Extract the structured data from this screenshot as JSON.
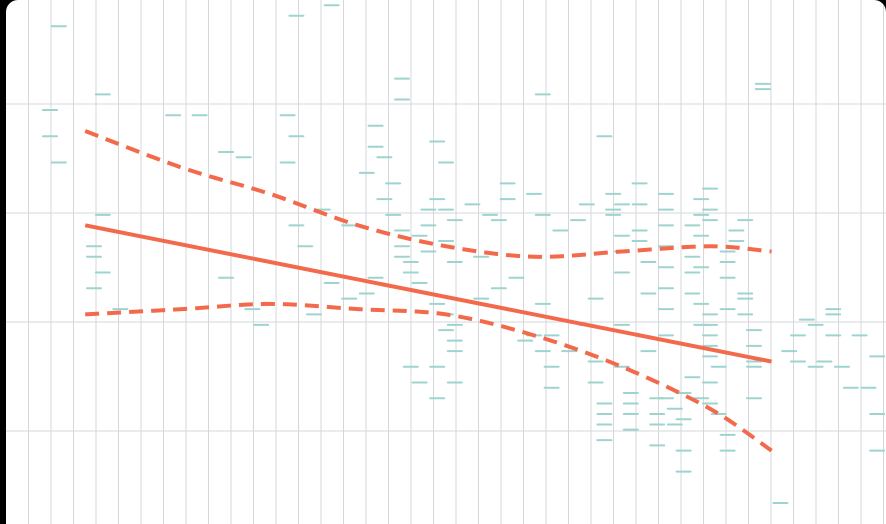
{
  "chart_data": {
    "type": "scatter",
    "title": "",
    "xlabel": "",
    "ylabel": "",
    "xlim": [
      0,
      100
    ],
    "ylim": [
      0,
      100
    ],
    "grid": true,
    "legend": "none",
    "colors": {
      "background": "#ffffff",
      "grid": "#d5d7da",
      "points": "#9ed4cf",
      "fit": "#f26a4b",
      "band": "#f26a4b"
    },
    "points": [
      [
        6,
        95
      ],
      [
        5,
        79
      ],
      [
        5,
        74
      ],
      [
        6,
        69
      ],
      [
        11,
        82
      ],
      [
        11,
        59
      ],
      [
        11,
        48
      ],
      [
        10,
        53
      ],
      [
        10,
        51
      ],
      [
        10,
        45
      ],
      [
        13,
        41
      ],
      [
        19,
        78
      ],
      [
        22,
        78
      ],
      [
        25,
        71
      ],
      [
        27,
        70
      ],
      [
        25,
        47
      ],
      [
        28,
        41
      ],
      [
        29,
        38
      ],
      [
        33,
        97
      ],
      [
        32,
        78
      ],
      [
        33,
        74
      ],
      [
        32,
        69
      ],
      [
        33,
        57
      ],
      [
        34,
        53
      ],
      [
        37,
        46
      ],
      [
        39,
        43
      ],
      [
        35,
        40
      ],
      [
        37,
        99
      ],
      [
        36,
        60
      ],
      [
        39,
        57
      ],
      [
        41,
        67
      ],
      [
        42,
        76
      ],
      [
        42,
        72
      ],
      [
        43,
        70
      ],
      [
        44,
        65
      ],
      [
        41,
        44
      ],
      [
        42,
        47
      ],
      [
        43,
        62
      ],
      [
        44,
        59
      ],
      [
        45,
        56
      ],
      [
        45,
        53
      ],
      [
        45,
        51
      ],
      [
        46,
        50
      ],
      [
        46,
        48
      ],
      [
        47,
        46
      ],
      [
        45,
        85
      ],
      [
        45,
        81
      ],
      [
        47,
        55
      ],
      [
        48,
        60
      ],
      [
        48,
        57
      ],
      [
        48,
        52
      ],
      [
        49,
        62
      ],
      [
        49,
        73
      ],
      [
        50,
        69
      ],
      [
        50,
        60
      ],
      [
        50,
        54
      ],
      [
        51,
        58
      ],
      [
        51,
        50
      ],
      [
        49,
        42
      ],
      [
        50,
        40
      ],
      [
        50,
        37
      ],
      [
        51,
        35
      ],
      [
        51,
        33
      ],
      [
        46,
        30
      ],
      [
        47,
        27
      ],
      [
        49,
        24
      ],
      [
        49,
        30
      ],
      [
        51,
        38
      ],
      [
        51,
        27
      ],
      [
        53,
        61
      ],
      [
        54,
        51
      ],
      [
        54,
        43
      ],
      [
        55,
        59
      ],
      [
        56,
        58
      ],
      [
        56,
        45
      ],
      [
        57,
        65
      ],
      [
        57,
        62
      ],
      [
        58,
        47
      ],
      [
        59,
        35
      ],
      [
        60,
        36
      ],
      [
        60,
        63
      ],
      [
        61,
        59
      ],
      [
        61,
        42
      ],
      [
        61,
        33
      ],
      [
        62,
        36
      ],
      [
        62,
        30
      ],
      [
        61,
        82
      ],
      [
        62,
        26
      ],
      [
        63,
        56
      ],
      [
        64,
        33
      ],
      [
        65,
        58
      ],
      [
        66,
        61
      ],
      [
        66,
        38
      ],
      [
        67,
        43
      ],
      [
        67,
        31
      ],
      [
        67,
        27
      ],
      [
        68,
        23
      ],
      [
        68,
        21
      ],
      [
        68,
        19
      ],
      [
        68,
        16
      ],
      [
        68,
        74
      ],
      [
        69,
        63
      ],
      [
        69,
        59
      ],
      [
        69,
        60
      ],
      [
        70,
        55
      ],
      [
        70,
        52
      ],
      [
        70,
        61
      ],
      [
        70,
        48
      ],
      [
        70,
        38
      ],
      [
        70,
        30
      ],
      [
        71,
        25
      ],
      [
        71,
        23
      ],
      [
        71,
        21
      ],
      [
        71,
        18
      ],
      [
        72,
        56
      ],
      [
        72,
        65
      ],
      [
        72,
        61
      ],
      [
        72,
        54
      ],
      [
        73,
        50
      ],
      [
        73,
        44
      ],
      [
        73,
        33
      ],
      [
        74,
        24
      ],
      [
        74,
        21
      ],
      [
        74,
        19
      ],
      [
        74,
        15
      ],
      [
        75,
        63
      ],
      [
        75,
        60
      ],
      [
        75,
        57
      ],
      [
        75,
        53
      ],
      [
        75,
        49
      ],
      [
        75,
        45
      ],
      [
        75,
        41
      ],
      [
        75,
        36
      ],
      [
        75,
        24
      ],
      [
        76,
        22
      ],
      [
        76,
        19
      ],
      [
        77,
        14
      ],
      [
        77,
        10
      ],
      [
        77,
        20
      ],
      [
        77,
        25
      ],
      [
        78,
        57
      ],
      [
        78,
        51
      ],
      [
        78,
        48
      ],
      [
        78,
        44
      ],
      [
        78,
        28
      ],
      [
        79,
        38
      ],
      [
        79,
        62
      ],
      [
        79,
        59
      ],
      [
        79,
        55
      ],
      [
        79,
        49
      ],
      [
        79,
        42
      ],
      [
        79,
        24
      ],
      [
        80,
        64
      ],
      [
        80,
        60
      ],
      [
        80,
        58
      ],
      [
        80,
        40
      ],
      [
        80,
        38
      ],
      [
        80,
        36
      ],
      [
        80,
        34
      ],
      [
        80,
        32
      ],
      [
        80,
        27
      ],
      [
        80,
        23
      ],
      [
        81,
        30
      ],
      [
        81,
        21
      ],
      [
        82,
        52
      ],
      [
        82,
        50
      ],
      [
        82,
        47
      ],
      [
        82,
        41
      ],
      [
        82,
        14
      ],
      [
        82,
        17
      ],
      [
        83,
        56
      ],
      [
        83,
        54
      ],
      [
        84,
        43
      ],
      [
        84,
        58
      ],
      [
        84,
        44
      ],
      [
        84,
        40
      ],
      [
        85,
        37
      ],
      [
        85,
        34
      ],
      [
        85,
        31
      ],
      [
        85,
        30
      ],
      [
        85,
        24
      ],
      [
        86,
        84
      ],
      [
        86,
        83
      ],
      [
        88,
        4
      ],
      [
        89,
        33
      ],
      [
        90,
        31
      ],
      [
        90,
        36
      ],
      [
        91,
        39
      ],
      [
        92,
        38
      ],
      [
        92,
        30
      ],
      [
        93,
        31
      ],
      [
        94,
        41
      ],
      [
        94,
        40
      ],
      [
        94,
        36
      ],
      [
        95,
        30
      ],
      [
        96,
        26
      ],
      [
        97,
        36
      ],
      [
        98,
        26
      ],
      [
        99,
        32
      ],
      [
        99,
        21
      ],
      [
        99,
        14
      ]
    ],
    "fit": [
      [
        9,
        57
      ],
      [
        87,
        31
      ]
    ],
    "band_upper": [
      [
        9,
        75
      ],
      [
        20,
        68
      ],
      [
        30,
        63
      ],
      [
        40,
        57
      ],
      [
        50,
        53
      ],
      [
        60,
        51
      ],
      [
        70,
        52
      ],
      [
        80,
        53
      ],
      [
        87,
        52
      ]
    ],
    "band_lower": [
      [
        9,
        40
      ],
      [
        20,
        41
      ],
      [
        30,
        42
      ],
      [
        40,
        41
      ],
      [
        50,
        40
      ],
      [
        60,
        36
      ],
      [
        70,
        30
      ],
      [
        80,
        22
      ],
      [
        87,
        14
      ]
    ]
  }
}
